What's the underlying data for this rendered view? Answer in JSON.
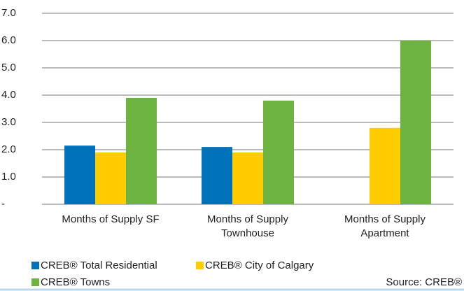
{
  "chart_data": {
    "type": "bar",
    "categories": [
      "Months of Supply SF",
      "Months of Supply Townhouse",
      "Months of Supply Apartment"
    ],
    "series": [
      {
        "name": "CREB® Total Residential",
        "color": "#0072bc",
        "values": [
          2.15,
          2.1,
          null
        ]
      },
      {
        "name": "CREB® City of Calgary",
        "color": "#ffcc00",
        "values": [
          1.9,
          1.9,
          2.8
        ]
      },
      {
        "name": "CREB® Towns",
        "color": "#6db33f",
        "values": [
          3.9,
          3.8,
          6.0
        ]
      }
    ],
    "ylim": [
      0,
      7
    ],
    "yticks": [
      {
        "value": 0,
        "label": "-"
      },
      {
        "value": 1,
        "label": "1.0"
      },
      {
        "value": 2,
        "label": "2.0"
      },
      {
        "value": 3,
        "label": "3.0"
      },
      {
        "value": 4,
        "label": "4.0"
      },
      {
        "value": 5,
        "label": "5.0"
      },
      {
        "value": 6,
        "label": "6.0"
      },
      {
        "value": 7,
        "label": "7.0"
      }
    ],
    "grid": true,
    "source": "Source: CREB®"
  }
}
